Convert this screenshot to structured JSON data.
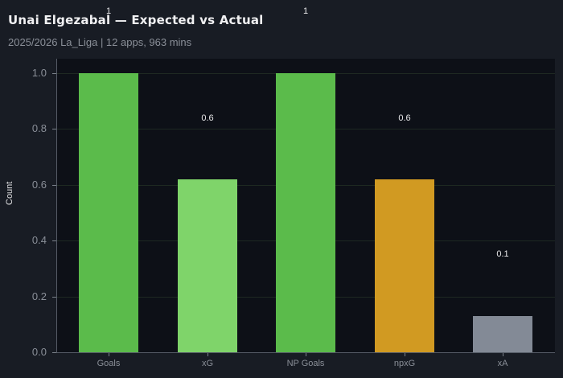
{
  "header": {
    "title": "Unai Elgezabal — Expected vs Actual",
    "subtitle": "2025/2026 La_Liga | 12 apps, 963 mins"
  },
  "chart_data": {
    "type": "bar",
    "title": "Unai Elgezabal — Expected vs Actual",
    "subtitle": "2025/2026 La_Liga | 12 apps, 963 mins",
    "categories": [
      "Goals",
      "xG",
      "NP Goals",
      "npxG",
      "xA"
    ],
    "values": [
      1,
      0.62,
      1,
      0.62,
      0.13
    ],
    "bar_labels": [
      "1",
      "0.6",
      "1",
      "0.6",
      "0.1"
    ],
    "colors": [
      "#5bbb4b",
      "#7fd46a",
      "#5bbb4b",
      "#d19a22",
      "#838a96"
    ],
    "xlabel": "",
    "ylabel": "Count",
    "ylim": [
      0,
      1.05
    ],
    "yticks": [
      "0.0",
      "0.2",
      "0.4",
      "0.6",
      "0.8",
      "1.0"
    ],
    "grid": true,
    "legend": null
  }
}
